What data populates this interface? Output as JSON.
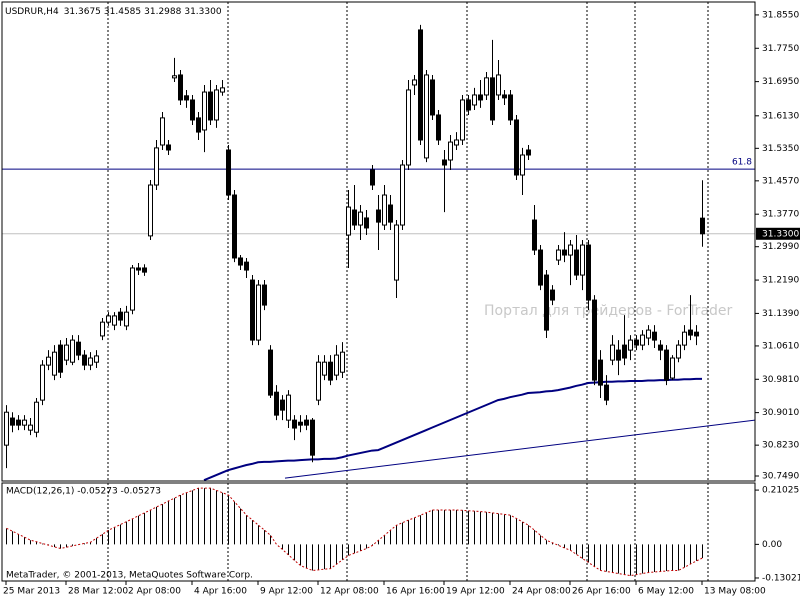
{
  "chart_data": {
    "type": "candlestick",
    "title": "USDRUR,H4",
    "last_value_labels": [
      "31.3675",
      "31.4585",
      "31.2988",
      "31.3300"
    ],
    "categories": [
      "25 Mar 2013",
      null,
      null,
      null,
      null,
      null,
      null,
      null,
      null,
      null,
      "28 Mar 12:00",
      null,
      null,
      null,
      null,
      null,
      null,
      null,
      null,
      null,
      "2 Apr 08:00",
      null,
      null,
      null,
      null,
      null,
      null,
      null,
      null,
      null,
      null,
      "4 Apr 16:00",
      null,
      null,
      null,
      null,
      null,
      null,
      null,
      null,
      null,
      null,
      "9 Apr 12:00",
      null,
      null,
      null,
      null,
      null,
      null,
      null,
      null,
      null,
      "12 Apr 08:00",
      null,
      null,
      null,
      null,
      null,
      null,
      null,
      null,
      null,
      null,
      "16 Apr 16:00",
      null,
      null,
      null,
      null,
      null,
      null,
      null,
      null,
      null,
      "19 Apr 12:00",
      null,
      null,
      null,
      null,
      null,
      null,
      null,
      null,
      null,
      null,
      "24 Apr 08:00",
      null,
      null,
      null,
      null,
      null,
      null,
      null,
      null,
      null,
      "26 Apr 16:00",
      null,
      null,
      null,
      null,
      null,
      null,
      null,
      null,
      null,
      null,
      "6 May 12:00",
      null,
      null,
      null,
      null,
      null,
      null,
      null,
      null,
      null,
      null,
      "13 May 08:00"
    ],
    "candles": [
      [
        30.823,
        30.919,
        30.768,
        30.902
      ],
      [
        30.888,
        30.902,
        30.854,
        30.871
      ],
      [
        30.883,
        30.895,
        30.859,
        30.871
      ],
      [
        30.871,
        30.895,
        30.859,
        30.883
      ],
      [
        30.859,
        30.888,
        30.847,
        30.871
      ],
      [
        30.854,
        30.936,
        30.842,
        30.926
      ],
      [
        30.931,
        31.027,
        30.919,
        31.015
      ],
      [
        31.015,
        31.051,
        31.003,
        31.034
      ],
      [
        30.991,
        31.063,
        30.979,
        31.046
      ],
      [
        31.063,
        31.075,
        30.984,
        30.998
      ],
      [
        31.027,
        31.08,
        31.015,
        31.063
      ],
      [
        31.022,
        31.087,
        31.015,
        31.075
      ],
      [
        31.07,
        31.087,
        31.027,
        31.039
      ],
      [
        31.039,
        31.051,
        31.003,
        31.015
      ],
      [
        31.015,
        31.046,
        31.003,
        31.032
      ],
      [
        31.022,
        31.051,
        31.008,
        31.037
      ],
      [
        31.085,
        31.128,
        31.075,
        31.118
      ],
      [
        31.118,
        31.142,
        31.109,
        31.133
      ],
      [
        31.111,
        31.142,
        31.099,
        31.133
      ],
      [
        31.142,
        31.152,
        31.109,
        31.123
      ],
      [
        31.109,
        31.157,
        31.099,
        31.142
      ],
      [
        31.147,
        31.255,
        31.137,
        31.248
      ],
      [
        31.248,
        31.26,
        31.231,
        31.243
      ],
      [
        31.248,
        31.257,
        31.229,
        31.238
      ],
      [
        31.325,
        31.459,
        31.315,
        31.447
      ],
      [
        31.447,
        31.555,
        31.435,
        31.536
      ],
      [
        31.543,
        31.622,
        31.531,
        31.608
      ],
      [
        31.543,
        31.555,
        31.519,
        31.531
      ],
      [
        31.704,
        31.752,
        31.694,
        31.709
      ],
      [
        31.711,
        31.723,
        31.639,
        31.651
      ],
      [
        31.661,
        31.675,
        31.632,
        31.651
      ],
      [
        31.651,
        31.663,
        31.591,
        31.603
      ],
      [
        31.608,
        31.622,
        31.555,
        31.574
      ],
      [
        31.579,
        31.687,
        31.526,
        31.67
      ],
      [
        31.67,
        31.699,
        31.591,
        31.603
      ],
      [
        31.603,
        31.687,
        31.584,
        31.675
      ],
      [
        31.67,
        31.699,
        31.661,
        31.68
      ],
      [
        31.531,
        31.543,
        31.411,
        31.423
      ],
      [
        31.423,
        31.435,
        31.262,
        31.272
      ],
      [
        31.272,
        31.279,
        31.243,
        31.255
      ],
      [
        31.262,
        31.272,
        31.224,
        31.243
      ],
      [
        31.219,
        31.231,
        31.063,
        31.075
      ],
      [
        31.075,
        31.219,
        31.063,
        31.207
      ],
      [
        31.207,
        31.219,
        31.147,
        31.159
      ],
      [
        31.051,
        31.063,
        30.936,
        30.943
      ],
      [
        30.95,
        30.967,
        30.883,
        30.895
      ],
      [
        30.931,
        30.943,
        30.883,
        30.907
      ],
      [
        30.883,
        30.955,
        30.864,
        30.943
      ],
      [
        30.883,
        30.895,
        30.835,
        30.864
      ],
      [
        30.878,
        30.895,
        30.854,
        30.871
      ],
      [
        30.883,
        30.895,
        30.859,
        30.871
      ],
      [
        30.883,
        30.888,
        30.782,
        30.799
      ],
      [
        30.931,
        31.039,
        30.919,
        31.022
      ],
      [
        30.991,
        31.039,
        30.979,
        31.022
      ],
      [
        31.022,
        31.039,
        30.967,
        30.979
      ],
      [
        30.991,
        31.063,
        30.979,
        31.039
      ],
      [
        30.998,
        31.07,
        30.984,
        31.046
      ],
      [
        31.327,
        31.435,
        31.248,
        31.394
      ],
      [
        31.387,
        31.447,
        31.339,
        31.351
      ],
      [
        31.351,
        31.399,
        31.315,
        31.382
      ],
      [
        31.368,
        31.387,
        31.327,
        31.344
      ],
      [
        31.483,
        31.495,
        31.435,
        31.447
      ],
      [
        31.387,
        31.423,
        31.291,
        31.358
      ],
      [
        31.351,
        31.447,
        31.339,
        31.423
      ],
      [
        31.399,
        31.423,
        31.339,
        31.358
      ],
      [
        31.219,
        31.363,
        31.176,
        31.351
      ],
      [
        31.351,
        31.507,
        31.339,
        31.495
      ],
      [
        31.495,
        31.699,
        31.483,
        31.675
      ],
      [
        31.687,
        31.711,
        31.663,
        31.699
      ],
      [
        31.819,
        31.831,
        31.543,
        31.555
      ],
      [
        31.512,
        31.723,
        31.502,
        31.711
      ],
      [
        31.699,
        31.711,
        31.603,
        31.615
      ],
      [
        31.615,
        31.627,
        31.543,
        31.555
      ],
      [
        31.507,
        31.531,
        31.382,
        31.495
      ],
      [
        31.507,
        31.567,
        31.483,
        31.55
      ],
      [
        31.543,
        31.574,
        31.531,
        31.555
      ],
      [
        31.555,
        31.663,
        31.543,
        31.651
      ],
      [
        31.651,
        31.663,
        31.615,
        31.627
      ],
      [
        31.639,
        31.68,
        31.627,
        31.663
      ],
      [
        31.663,
        31.699,
        31.632,
        31.651
      ],
      [
        31.663,
        31.718,
        31.651,
        31.704
      ],
      [
        31.704,
        31.795,
        31.591,
        31.603
      ],
      [
        31.663,
        31.747,
        31.651,
        31.711
      ],
      [
        31.663,
        31.675,
        31.639,
        31.656
      ],
      [
        31.663,
        31.675,
        31.591,
        31.603
      ],
      [
        31.603,
        31.615,
        31.459,
        31.471
      ],
      [
        31.471,
        31.536,
        31.423,
        31.519
      ],
      [
        31.531,
        31.543,
        31.507,
        31.519
      ],
      [
        31.363,
        31.399,
        31.279,
        31.291
      ],
      [
        31.291,
        31.303,
        31.195,
        31.207
      ],
      [
        31.231,
        31.243,
        31.08,
        31.099
      ],
      [
        31.195,
        31.207,
        31.159,
        31.171
      ],
      [
        31.267,
        31.303,
        31.255,
        31.291
      ],
      [
        31.291,
        31.334,
        31.262,
        31.279
      ],
      [
        31.279,
        31.315,
        31.207,
        31.303
      ],
      [
        31.291,
        31.327,
        31.219,
        31.231
      ],
      [
        31.231,
        31.315,
        31.195,
        31.303
      ],
      [
        31.303,
        31.315,
        31.147,
        31.171
      ],
      [
        31.171,
        31.183,
        30.967,
        30.979
      ],
      [
        31.027,
        31.051,
        30.936,
        30.967
      ],
      [
        30.967,
        30.991,
        30.919,
        30.931
      ],
      [
        31.027,
        31.087,
        31.015,
        31.063
      ],
      [
        31.051,
        31.075,
        30.991,
        31.027
      ],
      [
        31.063,
        31.135,
        31.015,
        31.032
      ],
      [
        31.051,
        31.087,
        31.027,
        31.075
      ],
      [
        31.075,
        31.087,
        31.051,
        31.063
      ],
      [
        31.063,
        31.099,
        31.051,
        31.087
      ],
      [
        31.08,
        31.111,
        31.063,
        31.099
      ],
      [
        31.094,
        31.111,
        31.056,
        31.075
      ],
      [
        31.063,
        31.075,
        31.027,
        31.051
      ],
      [
        31.051,
        31.063,
        30.967,
        30.979
      ],
      [
        30.984,
        31.039,
        30.979,
        31.032
      ],
      [
        31.032,
        31.075,
        31.022,
        31.063
      ],
      [
        31.063,
        31.111,
        31.051,
        31.094
      ],
      [
        31.099,
        31.183,
        31.075,
        31.087
      ],
      [
        31.094,
        31.111,
        31.063,
        31.085
      ],
      [
        31.3675,
        31.4585,
        31.2988,
        31.33
      ]
    ],
    "ylim": [
      30.737,
      31.886
    ],
    "yticks": [
      {
        "value": 31.855,
        "label": "31.8550"
      },
      {
        "value": 31.775,
        "label": "31.7750"
      },
      {
        "value": 31.695,
        "label": "31.6950"
      },
      {
        "value": 31.613,
        "label": "31.6130"
      },
      {
        "value": 31.535,
        "label": "31.5350"
      },
      {
        "value": 31.457,
        "label": "31.4570"
      },
      {
        "value": 31.377,
        "label": "31.3770"
      },
      {
        "value": 31.299,
        "label": "31.2990"
      },
      {
        "value": 31.219,
        "label": "31.2190"
      },
      {
        "value": 31.139,
        "label": "31.1390"
      },
      {
        "value": 31.061,
        "label": "31.0610"
      },
      {
        "value": 30.981,
        "label": "30.9810"
      },
      {
        "value": 30.901,
        "label": "30.9010"
      },
      {
        "value": 30.823,
        "label": "30.8230"
      },
      {
        "value": 30.749,
        "label": "30.7490"
      }
    ],
    "grid": true,
    "ma": {
      "color": "#000080",
      "values": [
        null,
        null,
        null,
        null,
        null,
        null,
        null,
        null,
        null,
        null,
        null,
        null,
        null,
        null,
        null,
        null,
        null,
        null,
        null,
        null,
        null,
        null,
        null,
        null,
        null,
        null,
        null,
        null,
        null,
        null,
        null,
        null,
        null,
        30.739,
        30.745,
        30.751,
        30.757,
        30.763,
        30.767,
        30.771,
        30.775,
        30.778,
        30.782,
        30.783,
        30.783,
        30.784,
        30.785,
        30.786,
        30.786,
        30.787,
        30.788,
        30.789,
        30.789,
        30.79,
        30.79,
        30.791,
        30.794,
        30.798,
        30.801,
        30.804,
        30.807,
        30.81,
        30.811,
        30.817,
        30.823,
        30.829,
        30.835,
        30.841,
        30.847,
        30.853,
        30.859,
        30.865,
        30.871,
        30.877,
        30.883,
        30.889,
        30.895,
        30.901,
        30.907,
        30.913,
        30.919,
        30.925,
        30.931,
        30.934,
        30.938,
        30.941,
        30.944,
        30.948,
        30.949,
        30.95,
        30.952,
        30.953,
        30.955,
        30.958,
        30.961,
        30.965,
        30.968,
        30.972,
        30.973,
        30.974,
        30.975,
        30.975,
        30.976,
        30.976,
        30.977,
        30.977,
        30.977,
        30.978,
        30.978,
        30.979,
        30.979,
        30.98,
        30.98,
        30.981,
        30.981,
        30.982,
        30.982
      ]
    },
    "trendline": {
      "color": "#000080",
      "values": [
        30.744,
        30.883
      ]
    },
    "level": {
      "label": "61.8",
      "value": 31.485,
      "color": "#000080"
    },
    "current_price": {
      "value": 31.33,
      "label": "31.3300"
    },
    "macd": {
      "type": "bar",
      "title": "MACD(12,26,1) -0.05273 -0.05273",
      "signal_color": "#c00000",
      "ylim": [
        -0.1419,
        0.2377
      ],
      "yticks": [
        0.21025,
        {
          "value": 0,
          "label": "0.00"
        },
        -0.13021
      ],
      "values": [
        0.062,
        0.051,
        0.039,
        0.028,
        0.016,
        0.01,
        0.003,
        -0.003,
        -0.01,
        -0.016,
        -0.011,
        -0.006,
        -0.001,
        0.004,
        0.008,
        0.024,
        0.039,
        0.055,
        0.066,
        0.077,
        0.088,
        0.099,
        0.111,
        0.122,
        0.133,
        0.145,
        0.156,
        0.168,
        0.179,
        0.191,
        0.2,
        0.209,
        0.218,
        0.218,
        0.218,
        0.209,
        0.2,
        0.191,
        0.165,
        0.139,
        0.113,
        0.094,
        0.074,
        0.055,
        0.035,
        0,
        -0.02,
        -0.041,
        -0.062,
        -0.082,
        -0.092,
        -0.101,
        -0.099,
        -0.096,
        -0.094,
        -0.077,
        -0.06,
        -0.043,
        -0.034,
        -0.025,
        -0.016,
        -0.004,
        0.016,
        0.035,
        0.055,
        0.074,
        0.084,
        0.094,
        0.103,
        0.113,
        0.123,
        0.133,
        0.133,
        0.133,
        0.133,
        0.133,
        0.132,
        0.13,
        0.129,
        0.127,
        0.125,
        0.122,
        0.119,
        0.116,
        0.113,
        0.1,
        0.087,
        0.074,
        0.055,
        0.035,
        0.016,
        0.006,
        -0.004,
        -0.014,
        -0.023,
        -0.039,
        -0.055,
        -0.07,
        -0.086,
        -0.101,
        -0.105,
        -0.109,
        -0.113,
        -0.117,
        -0.121,
        -0.117,
        -0.113,
        -0.109,
        -0.107,
        -0.105,
        -0.103,
        -0.101,
        -0.101,
        -0.089,
        -0.076,
        -0.064,
        -0.05273
      ]
    },
    "watermark": "Портал для трейдеров - ForTrader",
    "copyright": "MetaTrader, © 2001-2013, MetaQuotes Software Corp."
  }
}
